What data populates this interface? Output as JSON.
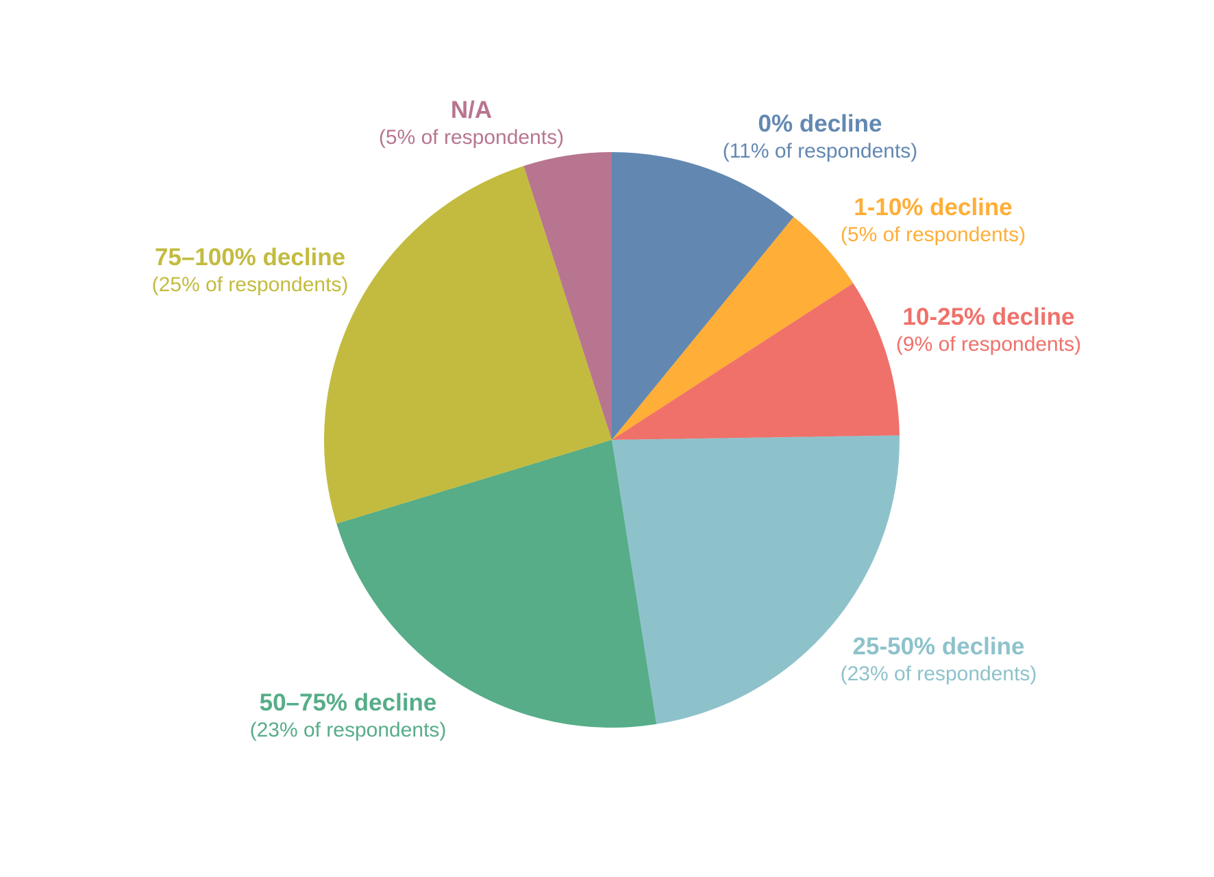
{
  "chart_data": {
    "type": "pie",
    "title": "",
    "unit": "% of respondents",
    "slices": [
      {
        "label": "0% decline",
        "sublabel": "(11% of respondents)",
        "value": 11,
        "color": "#6288B2"
      },
      {
        "label": "1-10% decline",
        "sublabel": "(5% of respondents)",
        "value": 5,
        "color": "#FFAE37"
      },
      {
        "label": "10-25% decline",
        "sublabel": "(9% of respondents)",
        "value": 9,
        "color": "#EF716A"
      },
      {
        "label": "25-50% decline",
        "sublabel": "(23% of respondents)",
        "value": 23,
        "color": "#8EC2CB"
      },
      {
        "label": "50–75% decline",
        "sublabel": "(23% of respondents)",
        "value": 23,
        "color": "#56AD88"
      },
      {
        "label": "75–100% decline",
        "sublabel": "(25% of respondents)",
        "value": 25,
        "color": "#C3BB3F"
      },
      {
        "label": "N/A",
        "sublabel": "(5% of respondents)",
        "value": 5,
        "color": "#B87590"
      }
    ],
    "start_angle": "12 o'clock",
    "direction": "clockwise"
  }
}
